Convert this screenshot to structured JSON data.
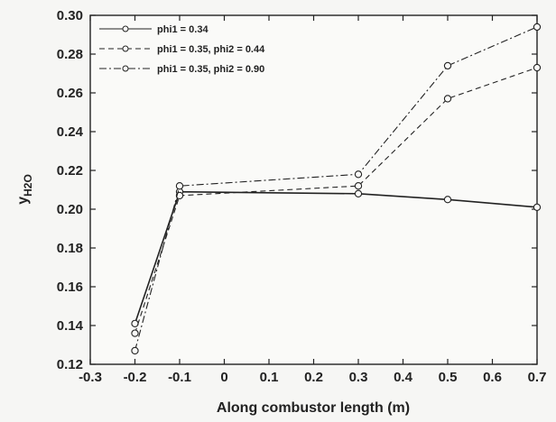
{
  "chart_data": {
    "type": "line",
    "title": "",
    "xlabel": "Along combustor length (m)",
    "ylabel_main": "y",
    "ylabel_sub": "H2O",
    "xlim": [
      -0.3,
      0.7
    ],
    "ylim": [
      0.12,
      0.3
    ],
    "xticks": [
      "-0.3",
      "-0.2",
      "-0.1",
      "0",
      "0.1",
      "0.2",
      "0.3",
      "0.4",
      "0.5",
      "0.6",
      "0.7"
    ],
    "yticks": [
      "0.12",
      "0.14",
      "0.16",
      "0.18",
      "0.20",
      "0.22",
      "0.24",
      "0.26",
      "0.28",
      "0.30"
    ],
    "grid": false,
    "legend_position": "top-left",
    "series": [
      {
        "name": "phi1 = 0.34",
        "line_style": "solid",
        "x": [
          -0.2,
          -0.1,
          0.3,
          0.5,
          0.7
        ],
        "y": [
          0.141,
          0.209,
          0.208,
          0.205,
          0.201
        ]
      },
      {
        "name": "phi1 = 0.35, phi2 = 0.44",
        "line_style": "dashed",
        "x": [
          -0.2,
          -0.1,
          0.3,
          0.5,
          0.7
        ],
        "y": [
          0.136,
          0.207,
          0.212,
          0.257,
          0.273
        ]
      },
      {
        "name": "phi1 = 0.35, phi2 = 0.90",
        "line_style": "dash-dot",
        "x": [
          -0.2,
          -0.1,
          0.3,
          0.5,
          0.7
        ],
        "y": [
          0.127,
          0.212,
          0.218,
          0.274,
          0.294
        ]
      }
    ]
  }
}
